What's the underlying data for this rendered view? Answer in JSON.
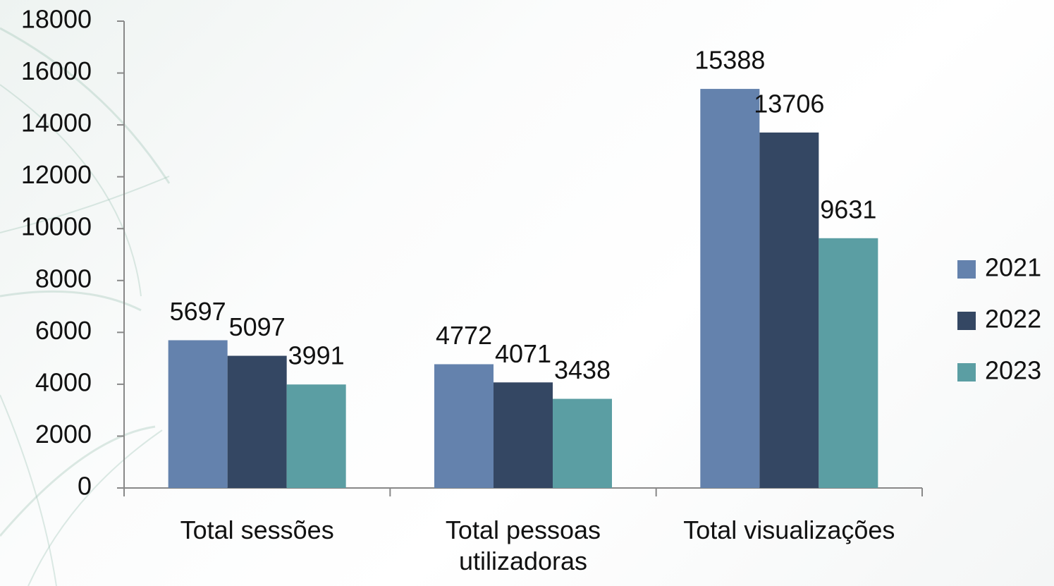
{
  "chart_data": {
    "type": "bar",
    "categories": [
      "Total sessões",
      "Total pessoas utilizadoras",
      "Total visualizações"
    ],
    "series": [
      {
        "name": "2021",
        "color": "#6482ad",
        "values": [
          5697,
          4772,
          15388
        ]
      },
      {
        "name": "2022",
        "color": "#344763",
        "values": [
          5097,
          4071,
          13706
        ]
      },
      {
        "name": "2023",
        "color": "#5b9ea3",
        "values": [
          3991,
          3438,
          9631
        ]
      }
    ],
    "ylim": [
      0,
      18000
    ],
    "yticks": [
      0,
      2000,
      4000,
      6000,
      8000,
      10000,
      12000,
      14000,
      16000,
      18000
    ],
    "legend": "right"
  }
}
